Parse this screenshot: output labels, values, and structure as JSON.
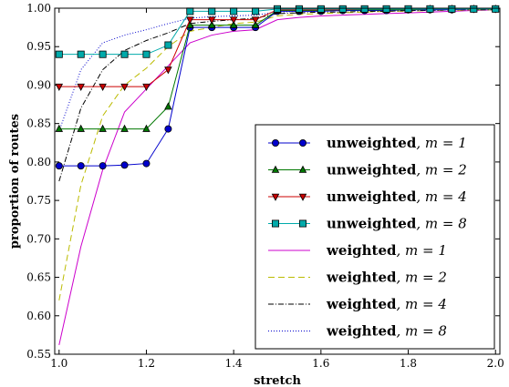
{
  "chart_data": {
    "type": "line",
    "xlabel": "stretch",
    "ylabel": "proportion of routes",
    "xlim": [
      0.99,
      2.01
    ],
    "ylim": [
      0.55,
      1.0
    ],
    "xticks": [
      1.0,
      1.2,
      1.4,
      1.6,
      1.8,
      2.0
    ],
    "xtick_labels": [
      "1.0",
      "1.2",
      "1.4",
      "1.6",
      "1.8",
      "2.0"
    ],
    "yticks": [
      0.55,
      0.6,
      0.65,
      0.7,
      0.75,
      0.8,
      0.85,
      0.9,
      0.95,
      1.0
    ],
    "ytick_labels": [
      "0.55",
      "0.60",
      "0.65",
      "0.70",
      "0.75",
      "0.80",
      "0.85",
      "0.90",
      "0.95",
      "1.00"
    ],
    "legend_position": "bottom-right",
    "x": [
      1.0,
      1.05,
      1.1,
      1.15,
      1.2,
      1.25,
      1.3,
      1.35,
      1.4,
      1.45,
      1.5,
      1.55,
      1.6,
      1.65,
      1.7,
      1.75,
      1.8,
      1.85,
      1.9,
      1.95,
      2.0
    ],
    "series": [
      {
        "name_bold": "unweighted",
        "name_math": ", m = 1",
        "color": "#0000cc",
        "marker": "circle",
        "dash": "",
        "values": [
          0.795,
          0.795,
          0.795,
          0.796,
          0.798,
          0.843,
          0.975,
          0.975,
          0.975,
          0.975,
          0.996,
          0.996,
          0.996,
          0.997,
          0.997,
          0.997,
          0.998,
          0.998,
          0.998,
          0.999,
          0.999
        ]
      },
      {
        "name_bold": "unweighted",
        "name_math": ", m = 2",
        "color": "#007700",
        "marker": "triangle-up",
        "dash": "",
        "values": [
          0.843,
          0.843,
          0.843,
          0.843,
          0.843,
          0.872,
          0.978,
          0.978,
          0.978,
          0.978,
          0.997,
          0.997,
          0.997,
          0.998,
          0.998,
          0.998,
          0.998,
          0.999,
          0.999,
          0.999,
          0.999
        ]
      },
      {
        "name_bold": "unweighted",
        "name_math": ", m = 4",
        "color": "#cc0000",
        "marker": "triangle-down",
        "dash": "",
        "values": [
          0.898,
          0.898,
          0.898,
          0.898,
          0.898,
          0.92,
          0.985,
          0.985,
          0.985,
          0.985,
          0.998,
          0.998,
          0.998,
          0.998,
          0.999,
          0.999,
          0.999,
          0.999,
          0.999,
          0.999,
          0.999
        ]
      },
      {
        "name_bold": "unweighted",
        "name_math": ", m = 8",
        "color": "#00aaaa",
        "marker": "square",
        "dash": "",
        "values": [
          0.94,
          0.94,
          0.94,
          0.94,
          0.94,
          0.952,
          0.996,
          0.996,
          0.996,
          0.996,
          0.999,
          0.999,
          0.999,
          0.999,
          0.999,
          0.999,
          0.999,
          0.999,
          0.999,
          0.999,
          0.999
        ]
      },
      {
        "name_bold": "weighted",
        "name_math": ", m = 1",
        "color": "#cc00cc",
        "marker": "",
        "dash": "",
        "values": [
          0.562,
          0.69,
          0.79,
          0.865,
          0.895,
          0.925,
          0.955,
          0.965,
          0.97,
          0.972,
          0.985,
          0.988,
          0.99,
          0.991,
          0.992,
          0.993,
          0.994,
          0.995,
          0.996,
          0.997,
          0.998
        ]
      },
      {
        "name_bold": "weighted",
        "name_math": ", m = 2",
        "color": "#bbbb00",
        "marker": "",
        "dash": "7,4",
        "values": [
          0.62,
          0.77,
          0.86,
          0.9,
          0.922,
          0.95,
          0.97,
          0.975,
          0.98,
          0.982,
          0.99,
          0.992,
          0.993,
          0.994,
          0.995,
          0.996,
          0.996,
          0.997,
          0.997,
          0.998,
          0.998
        ]
      },
      {
        "name_bold": "weighted",
        "name_math": ", m = 4",
        "color": "#000000",
        "marker": "",
        "dash": "6,2,1,2",
        "values": [
          0.775,
          0.87,
          0.92,
          0.945,
          0.958,
          0.968,
          0.98,
          0.983,
          0.985,
          0.987,
          0.993,
          0.994,
          0.995,
          0.995,
          0.996,
          0.996,
          0.997,
          0.997,
          0.998,
          0.998,
          0.998
        ]
      },
      {
        "name_bold": "weighted",
        "name_math": ", m = 8",
        "color": "#0000cc",
        "marker": "",
        "dash": "1,2",
        "values": [
          0.84,
          0.92,
          0.955,
          0.965,
          0.972,
          0.98,
          0.987,
          0.989,
          0.99,
          0.991,
          0.995,
          0.996,
          0.996,
          0.997,
          0.997,
          0.997,
          0.998,
          0.998,
          0.998,
          0.999,
          0.999
        ]
      }
    ]
  }
}
